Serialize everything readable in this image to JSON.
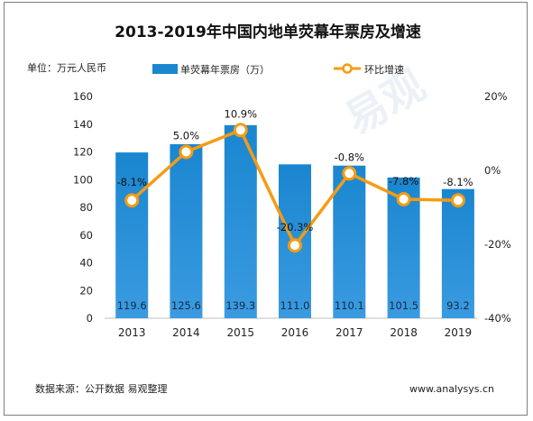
{
  "title": "2013-2019年中国内地单荧幕年票房及增速",
  "unit_label": "单位：万元人民币",
  "footer": {
    "source": "数据来源：公开数据 易观整理",
    "website": "www.analysys.cn"
  },
  "watermark": "易观",
  "colors": {
    "bar": "#1a86d0",
    "bar_light": "#3a9be0",
    "line": "#f59c12",
    "marker_fill": "#ffffff"
  },
  "chart_data": {
    "type": "bar",
    "title": "2013-2019年中国内地单荧幕年票房及增速",
    "categories": [
      "2013",
      "2014",
      "2015",
      "2016",
      "2017",
      "2018",
      "2019"
    ],
    "series": [
      {
        "name": "单荧幕年票房（万）",
        "type": "bar",
        "axis": "left",
        "values": [
          119.6,
          125.6,
          139.3,
          111.0,
          110.1,
          101.5,
          93.2
        ],
        "labels": [
          "119.6",
          "125.6",
          "139.3",
          "111.0",
          "110.1",
          "101.5",
          "93.2"
        ]
      },
      {
        "name": "环比增速",
        "type": "line",
        "axis": "right",
        "values": [
          -8.1,
          5.0,
          10.9,
          -20.3,
          -0.8,
          -7.8,
          -8.1
        ],
        "labels": [
          "-8.1%",
          "5.0%",
          "10.9%",
          "-20.3%",
          "-0.8%",
          "-7.8%",
          "-8.1%"
        ]
      }
    ],
    "y_left": {
      "range": [
        0,
        160
      ],
      "ticks": [
        "0",
        "20",
        "40",
        "60",
        "80",
        "100",
        "120",
        "140",
        "160"
      ]
    },
    "y_right": {
      "range": [
        -40,
        20
      ],
      "ticks": [
        "-40%",
        "-20%",
        "0%",
        "20%"
      ]
    },
    "grid": false,
    "legend_position": "top"
  }
}
